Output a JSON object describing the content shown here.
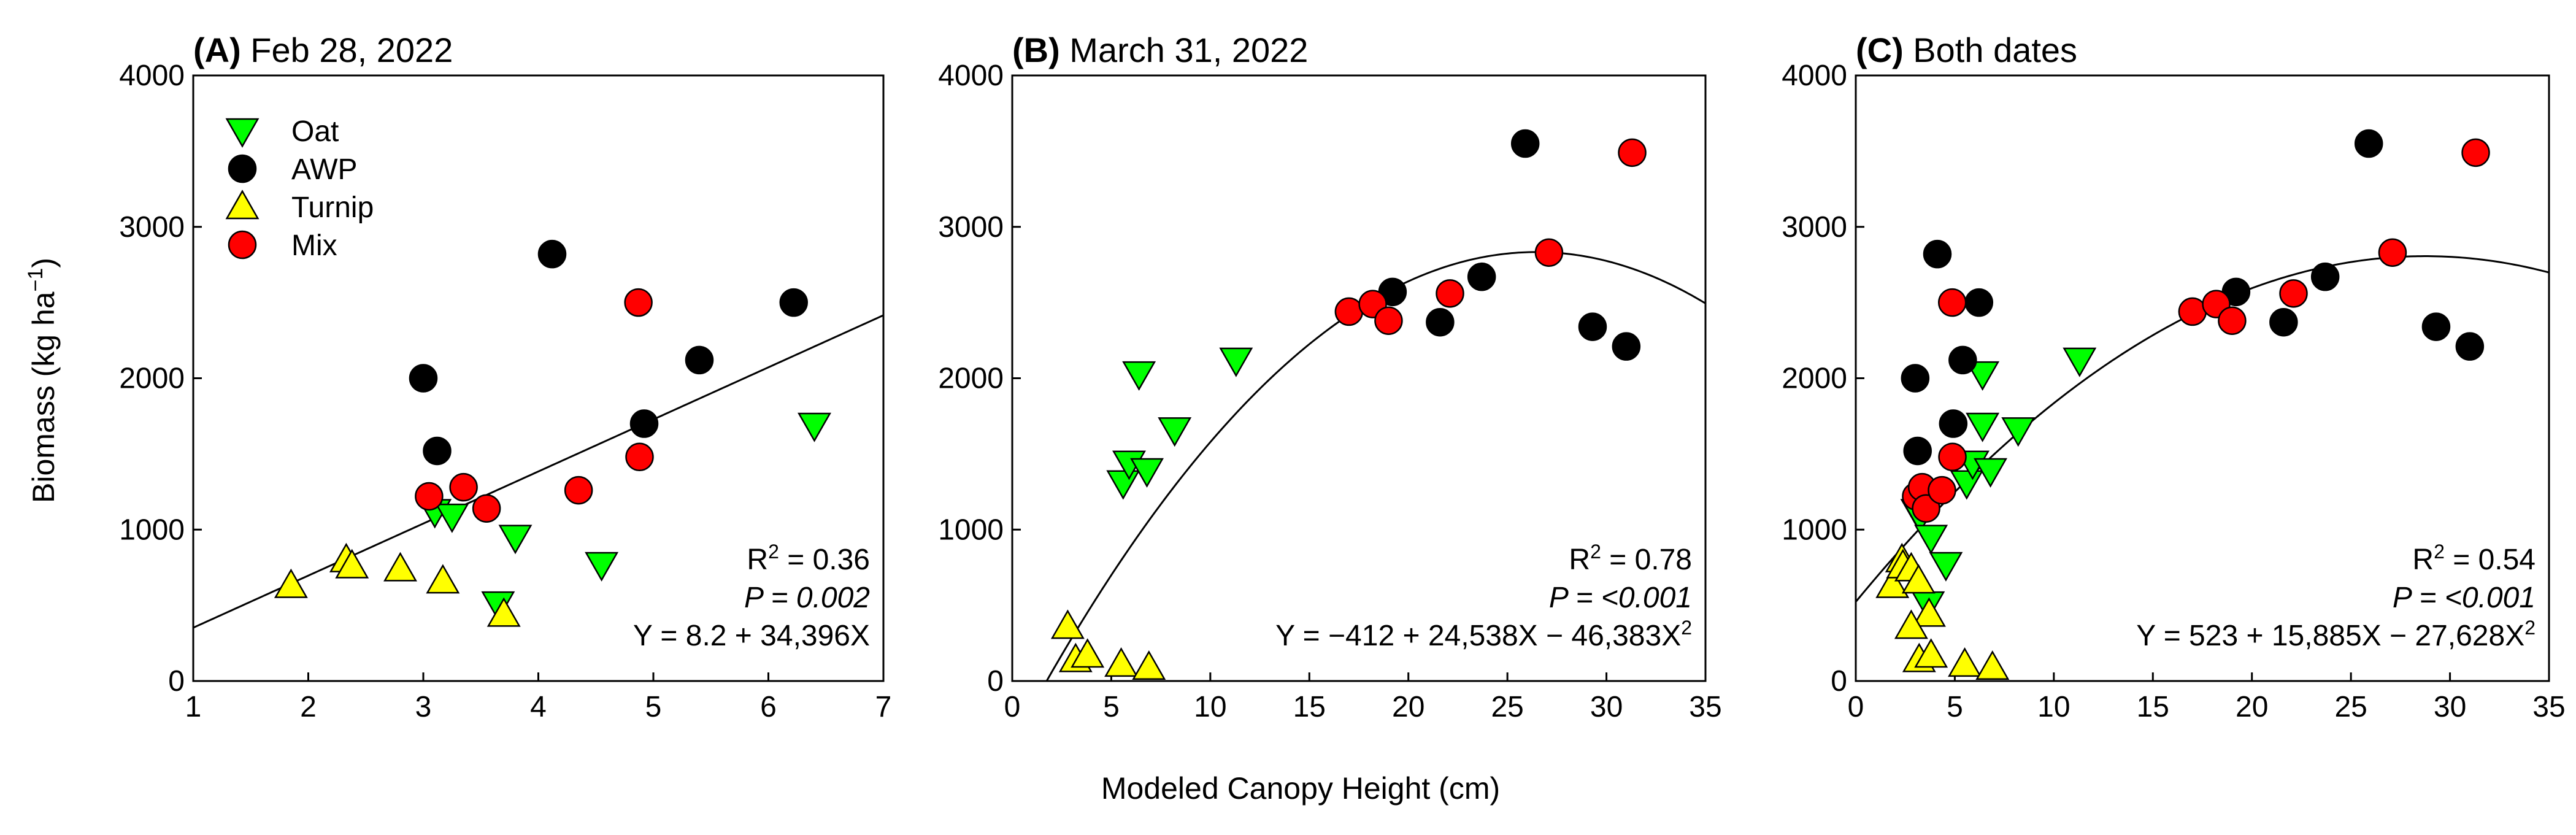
{
  "figure": {
    "xlabel": "Modeled Canopy Height (cm)",
    "ylabel_main": "Biomass (kg ha",
    "ylabel_sup": "−1",
    "ylabel_close": ")"
  },
  "colors": {
    "Oat": "#00ff00",
    "AWP": "#000000",
    "Turnip": "#ffff00",
    "Mix": "#ff0000"
  },
  "legend": [
    {
      "name": "Oat",
      "marker": "triangle-down"
    },
    {
      "name": "AWP",
      "marker": "circle"
    },
    {
      "name": "Turnip",
      "marker": "triangle-up"
    },
    {
      "name": "Mix",
      "marker": "circle"
    }
  ],
  "chart_data": [
    {
      "type": "scatter",
      "panel_label": "(A)",
      "title": "Feb 28, 2022",
      "xlim": [
        1,
        7
      ],
      "ylim": [
        0,
        4000
      ],
      "xticks": [
        1,
        2,
        3,
        4,
        5,
        6,
        7
      ],
      "yticks": [
        0,
        1000,
        2000,
        3000,
        4000
      ],
      "show_legend": true,
      "legend_position": "top-left",
      "series": [
        {
          "name": "Oat",
          "points": [
            [
              3.1,
              1120
            ],
            [
              3.25,
              1090
            ],
            [
              3.8,
              950
            ],
            [
              4.55,
              770
            ],
            [
              6.4,
              1690
            ],
            [
              3.65,
              510
            ]
          ]
        },
        {
          "name": "AWP",
          "points": [
            [
              3.0,
              2000
            ],
            [
              3.12,
              1520
            ],
            [
              4.12,
              2820
            ],
            [
              4.92,
              1700
            ],
            [
              5.4,
              2120
            ],
            [
              6.22,
              2500
            ]
          ]
        },
        {
          "name": "Turnip",
          "points": [
            [
              1.85,
              630
            ],
            [
              2.33,
              800
            ],
            [
              2.38,
              760
            ],
            [
              2.8,
              740
            ],
            [
              3.17,
              660
            ],
            [
              3.7,
              440
            ]
          ]
        },
        {
          "name": "Mix",
          "points": [
            [
              3.05,
              1220
            ],
            [
              3.35,
              1280
            ],
            [
              3.55,
              1140
            ],
            [
              4.35,
              1260
            ],
            [
              4.87,
              2500
            ],
            [
              4.88,
              1480
            ]
          ]
        }
      ],
      "fit": {
        "type": "linear",
        "a": 8.2,
        "b": 343.96,
        "c": 0
      },
      "stats": {
        "r2_prefix": "R",
        "r2_sup": "2",
        "r2_value": " = 0.36",
        "p_text": "P = 0.002",
        "eq_main": "Y = 8.2 + 34,396X",
        "eq_sup": ""
      }
    },
    {
      "type": "scatter",
      "panel_label": "(B)",
      "title": "March 31, 2022",
      "xlim": [
        0,
        35
      ],
      "ylim": [
        0,
        4000
      ],
      "xticks": [
        0,
        5,
        10,
        15,
        20,
        25,
        30,
        35
      ],
      "yticks": [
        0,
        1000,
        2000,
        3000,
        4000
      ],
      "show_legend": false,
      "series": [
        {
          "name": "Oat",
          "points": [
            [
              5.6,
              1310
            ],
            [
              5.9,
              1440
            ],
            [
              6.4,
              2030
            ],
            [
              6.8,
              1390
            ],
            [
              8.2,
              1660
            ],
            [
              11.3,
              2120
            ]
          ]
        },
        {
          "name": "AWP",
          "points": [
            [
              19.2,
              2570
            ],
            [
              21.6,
              2370
            ],
            [
              23.7,
              2670
            ],
            [
              25.9,
              3550
            ],
            [
              29.3,
              2340
            ],
            [
              31.0,
              2210
            ]
          ]
        },
        {
          "name": "Turnip",
          "points": [
            [
              2.8,
              360
            ],
            [
              3.2,
              140
            ],
            [
              3.8,
              170
            ],
            [
              5.5,
              110
            ],
            [
              6.9,
              90
            ]
          ]
        },
        {
          "name": "Mix",
          "points": [
            [
              17.0,
              2440
            ],
            [
              18.2,
              2490
            ],
            [
              19.0,
              2380
            ],
            [
              22.1,
              2560
            ],
            [
              27.1,
              2830
            ],
            [
              31.3,
              3490
            ]
          ]
        }
      ],
      "fit": {
        "type": "quadratic",
        "a": -412,
        "b": 245.38,
        "c": -4.6383
      },
      "stats": {
        "r2_prefix": "R",
        "r2_sup": "2",
        "r2_value": " = 0.78",
        "p_text": "P = <0.001",
        "eq_main": "Y = −412 + 24,538X − 46,383X",
        "eq_sup": "2"
      }
    },
    {
      "type": "scatter",
      "panel_label": "(C)",
      "title": "Both dates",
      "xlim": [
        0,
        35
      ],
      "ylim": [
        0,
        4000
      ],
      "xticks": [
        0,
        5,
        10,
        15,
        20,
        25,
        30,
        35
      ],
      "yticks": [
        0,
        1000,
        2000,
        3000,
        4000
      ],
      "show_legend": false,
      "series": [
        {
          "name": "Oat",
          "points": [
            [
              3.1,
              1120
            ],
            [
              3.25,
              1090
            ],
            [
              3.8,
              950
            ],
            [
              4.55,
              770
            ],
            [
              6.4,
              1690
            ],
            [
              3.65,
              510
            ],
            [
              5.6,
              1310
            ],
            [
              5.9,
              1440
            ],
            [
              6.4,
              2030
            ],
            [
              6.8,
              1390
            ],
            [
              8.2,
              1660
            ],
            [
              11.3,
              2120
            ]
          ]
        },
        {
          "name": "AWP",
          "points": [
            [
              3.0,
              2000
            ],
            [
              3.12,
              1520
            ],
            [
              4.12,
              2820
            ],
            [
              4.92,
              1700
            ],
            [
              5.4,
              2120
            ],
            [
              6.22,
              2500
            ],
            [
              19.2,
              2570
            ],
            [
              21.6,
              2370
            ],
            [
              23.7,
              2670
            ],
            [
              25.9,
              3550
            ],
            [
              29.3,
              2340
            ],
            [
              31.0,
              2210
            ]
          ]
        },
        {
          "name": "Turnip",
          "points": [
            [
              1.85,
              630
            ],
            [
              2.33,
              800
            ],
            [
              2.38,
              760
            ],
            [
              2.8,
              740
            ],
            [
              3.17,
              660
            ],
            [
              3.7,
              440
            ],
            [
              2.8,
              360
            ],
            [
              3.2,
              140
            ],
            [
              3.8,
              170
            ],
            [
              5.5,
              110
            ],
            [
              6.9,
              90
            ]
          ]
        },
        {
          "name": "Mix",
          "points": [
            [
              3.05,
              1220
            ],
            [
              3.35,
              1280
            ],
            [
              3.55,
              1140
            ],
            [
              4.35,
              1260
            ],
            [
              4.87,
              2500
            ],
            [
              4.88,
              1480
            ],
            [
              17.0,
              2440
            ],
            [
              18.2,
              2490
            ],
            [
              19.0,
              2380
            ],
            [
              22.1,
              2560
            ],
            [
              27.1,
              2830
            ],
            [
              31.3,
              3490
            ]
          ]
        }
      ],
      "fit": {
        "type": "quadratic",
        "a": 523,
        "b": 158.85,
        "c": -2.7628
      },
      "stats": {
        "r2_prefix": "R",
        "r2_sup": "2",
        "r2_value": " = 0.54",
        "p_text": "P = <0.001",
        "eq_main": "Y = 523 + 15,885X − 27,628X",
        "eq_sup": "2"
      }
    }
  ]
}
